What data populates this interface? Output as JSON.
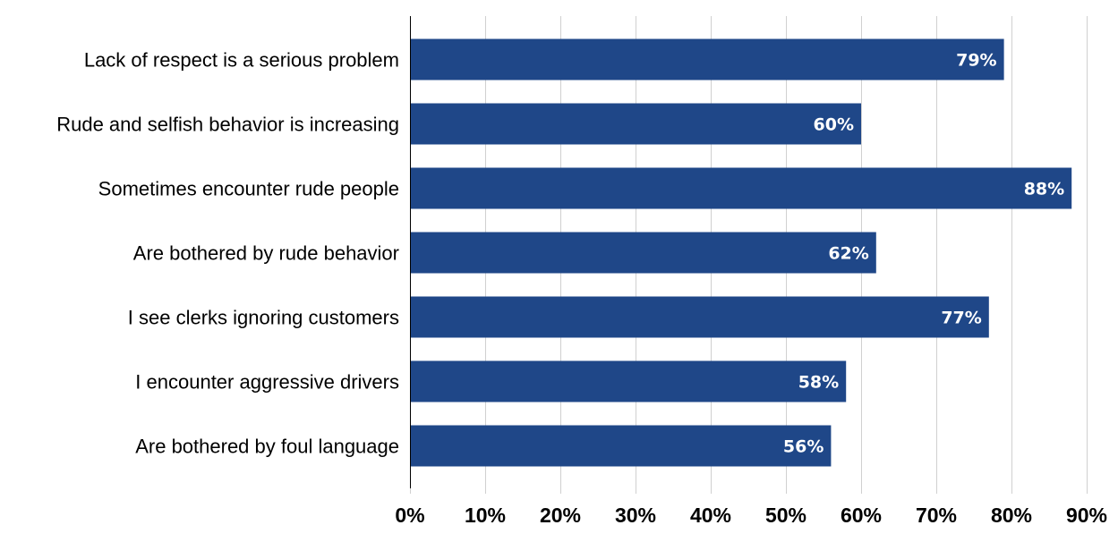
{
  "chart_data": {
    "type": "bar",
    "orientation": "horizontal",
    "categories": [
      "Lack of respect is a serious problem",
      "Rude and selfish behavior is increasing",
      "Sometimes encounter rude people",
      "Are bothered by rude behavior",
      "I see clerks ignoring customers",
      "I encounter aggressive drivers",
      "Are bothered by foul language"
    ],
    "values": [
      79,
      60,
      88,
      62,
      77,
      58,
      56
    ],
    "data_labels": [
      "79%",
      "60%",
      "88%",
      "62%",
      "77%",
      "58%",
      "56%"
    ],
    "xlim": [
      0,
      90
    ],
    "x_ticks": [
      0,
      10,
      20,
      30,
      40,
      50,
      60,
      70,
      80,
      90
    ],
    "x_tick_labels": [
      "0%",
      "10%",
      "20%",
      "30%",
      "40%",
      "50%",
      "60%",
      "70%",
      "80%",
      "90%"
    ],
    "title": "",
    "xlabel": "",
    "ylabel": "",
    "grid": "vertical",
    "legend": "none",
    "colors": {
      "bar": "#1f4788",
      "grid": "#d0d0d0",
      "axis": "#000000",
      "data_label": "#ffffff"
    }
  }
}
